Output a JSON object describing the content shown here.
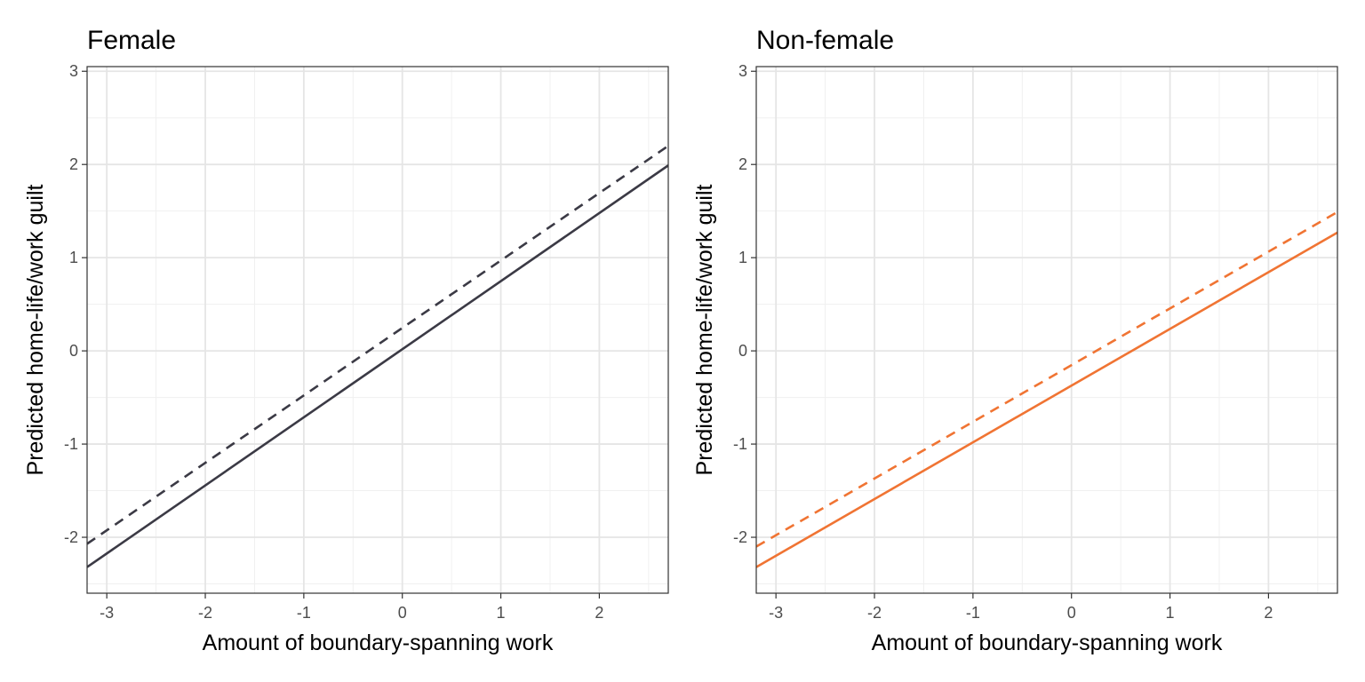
{
  "chart_data": [
    {
      "type": "line",
      "title": "Female",
      "xlabel": "Amount of boundary-spanning work",
      "ylabel": "Predicted home-life/work guilt",
      "xlim": [
        -3.2,
        2.7
      ],
      "ylim": [
        -2.6,
        3.05
      ],
      "xticks": [
        "-3",
        "-2",
        "-1",
        "0",
        "1",
        "2"
      ],
      "yticks": [
        "-2",
        "-1",
        "0",
        "1",
        "2",
        "3"
      ],
      "color": "#3b3a45",
      "series": [
        {
          "name": "solid",
          "style": "solid",
          "x": [
            -3.2,
            2.7
          ],
          "y": [
            -2.32,
            1.99
          ]
        },
        {
          "name": "dashed",
          "style": "dashed",
          "x": [
            -3.2,
            2.7
          ],
          "y": [
            -2.07,
            2.2
          ]
        }
      ]
    },
    {
      "type": "line",
      "title": "Non-female",
      "xlabel": "Amount of boundary-spanning work",
      "ylabel": "Predicted home-life/work guilt",
      "xlim": [
        -3.2,
        2.7
      ],
      "ylim": [
        -2.6,
        3.05
      ],
      "xticks": [
        "-3",
        "-2",
        "-1",
        "0",
        "1",
        "2"
      ],
      "yticks": [
        "-2",
        "-1",
        "0",
        "1",
        "2",
        "3"
      ],
      "color": "#f07433",
      "series": [
        {
          "name": "solid",
          "style": "solid",
          "x": [
            -3.2,
            2.7
          ],
          "y": [
            -2.32,
            1.27
          ]
        },
        {
          "name": "dashed",
          "style": "dashed",
          "x": [
            -3.2,
            2.7
          ],
          "y": [
            -2.1,
            1.49
          ]
        }
      ]
    }
  ]
}
